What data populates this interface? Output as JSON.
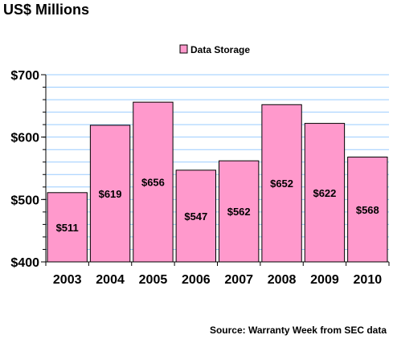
{
  "chart_data": {
    "type": "bar",
    "title": "US$ Millions",
    "categories": [
      "2003",
      "2004",
      "2005",
      "2006",
      "2007",
      "2008",
      "2009",
      "2010"
    ],
    "series": [
      {
        "name": "Data Storage",
        "values": [
          511,
          619,
          656,
          547,
          562,
          652,
          622,
          568
        ],
        "labels": [
          "$511",
          "$619",
          "$656",
          "$547",
          "$562",
          "$652",
          "$622",
          "$568"
        ]
      }
    ],
    "ylim": [
      400,
      700
    ],
    "yticks": [
      400,
      500,
      600,
      700
    ],
    "ytick_labels": [
      "$400",
      "$500",
      "$600",
      "$700"
    ],
    "grid": true,
    "legend_position": "top-center",
    "source": "Source: Warranty Week from SEC data",
    "colors": {
      "bar": "#ff99cc",
      "grid": "#99ccff",
      "axis": "#000000"
    }
  }
}
